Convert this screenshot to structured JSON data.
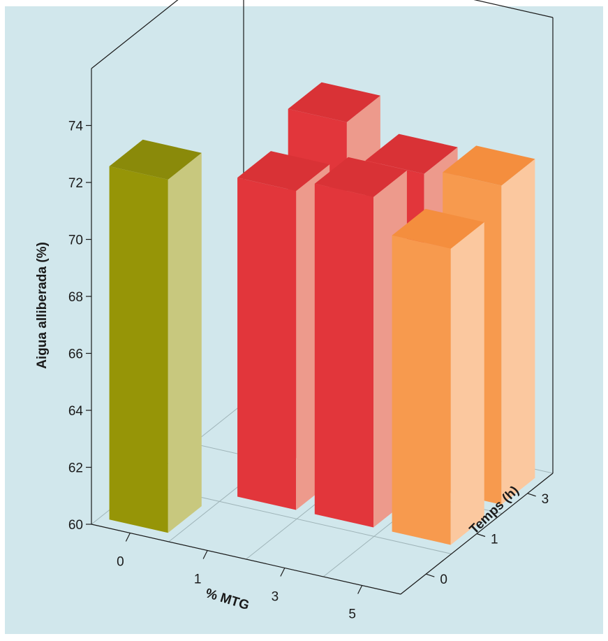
{
  "chart_data": {
    "type": "bar",
    "subtype": "3d-bar",
    "title": "",
    "ylabel": "Aigua alliberada (%)",
    "xlabel": "% MTG",
    "zlabel": "Temps (h)",
    "ylim": [
      60,
      76
    ],
    "y_ticks": [
      "60",
      "62",
      "64",
      "66",
      "68",
      "70",
      "72",
      "74"
    ],
    "x_categories": [
      "0",
      "1",
      "3",
      "5"
    ],
    "z_categories": [
      "0",
      "1",
      "3"
    ],
    "grid": true,
    "background_color": "#d1e7ec",
    "bars": [
      {
        "mtg": "0",
        "temps": "0",
        "value": 72.4,
        "front_color": "#969507",
        "side_color": "#c8c87e",
        "top_color": "#8a8a0a"
      },
      {
        "mtg": "1",
        "temps": "3",
        "value": 72.2,
        "front_color": "#e2363b",
        "side_color": "#ed9a8c",
        "top_color": "#d93236"
      },
      {
        "mtg": "1",
        "temps": "1",
        "value": 71.2,
        "front_color": "#e2363b",
        "side_color": "#ed9a8c",
        "top_color": "#d93236"
      },
      {
        "mtg": "3",
        "temps": "1",
        "value": 71.6,
        "front_color": "#e2363b",
        "side_color": "#ed9a8c",
        "top_color": "#d93236"
      },
      {
        "mtg": "3",
        "temps": "3",
        "value": 71.0,
        "front_color": "#e2363b",
        "side_color": "#ed9a8c",
        "top_color": "#d93236"
      },
      {
        "mtg": "5",
        "temps": "3",
        "value": 71.2,
        "front_color": "#f79a4e",
        "side_color": "#fbc89f",
        "top_color": "#f48e3e"
      },
      {
        "mtg": "5",
        "temps": "1",
        "value": 70.4,
        "front_color": "#f79a4e",
        "side_color": "#fbc89f",
        "top_color": "#f48e3e"
      }
    ]
  }
}
